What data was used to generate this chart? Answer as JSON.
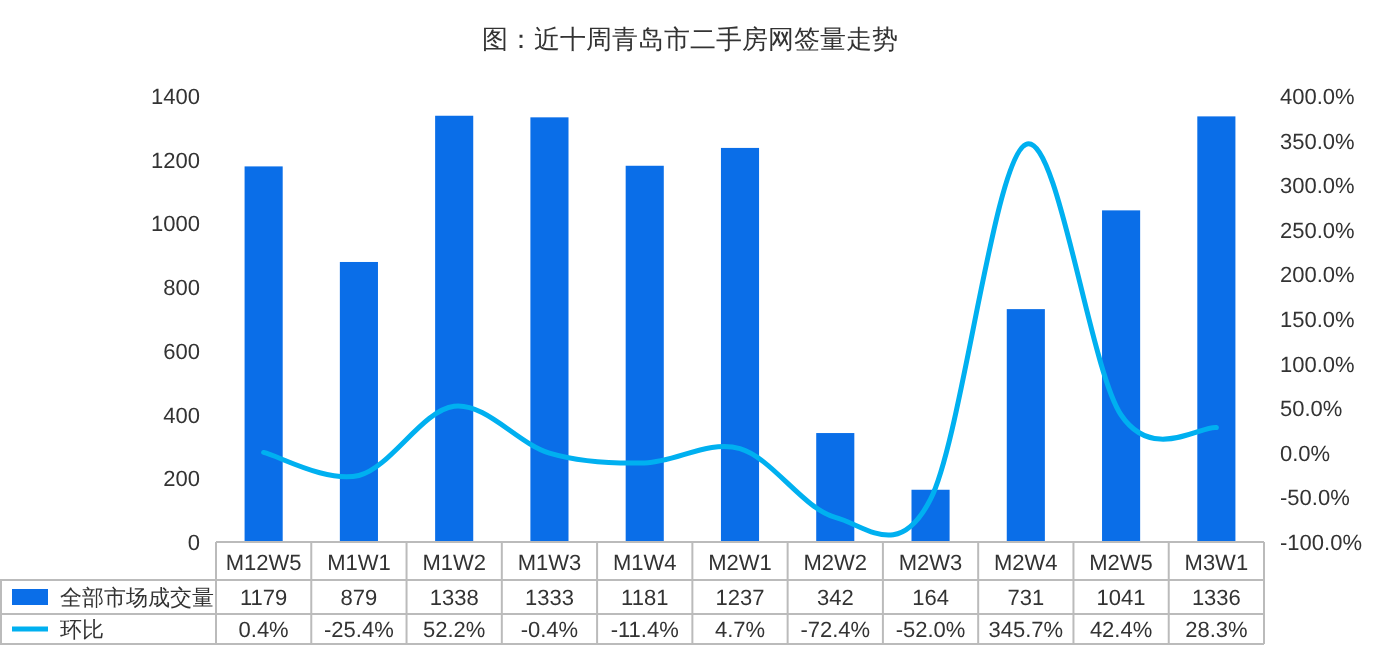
{
  "chart_data": {
    "type": "bar",
    "title": "图：近十周青岛市二手房网签量走势",
    "categories": [
      "M12W5",
      "M1W1",
      "M1W2",
      "M1W3",
      "M1W4",
      "M2W1",
      "M2W2",
      "M2W3",
      "M2W4",
      "M2W5",
      "M3W1"
    ],
    "series": [
      {
        "name": "全部市场成交量",
        "color": "#0a6ee8",
        "values": [
          1179,
          879,
          1338,
          1333,
          1181,
          1237,
          342,
          164,
          731,
          1041,
          1336
        ],
        "value_labels": [
          "1179",
          "879",
          "1338",
          "1333",
          "1181",
          "1237",
          "342",
          "164",
          "731",
          "1041",
          "1336"
        ]
      },
      {
        "name": "环比",
        "type": "line",
        "axis": "y2",
        "color": "#00b0f0",
        "values": [
          0.4,
          -25.4,
          52.2,
          -0.4,
          -11.4,
          4.7,
          -72.4,
          -52.0,
          345.7,
          42.4,
          28.3
        ],
        "value_labels": [
          "0.4%",
          "-25.4%",
          "52.2%",
          "-0.4%",
          "-11.4%",
          "4.7%",
          "-72.4%",
          "-52.0%",
          "345.7%",
          "42.4%",
          "28.3%"
        ]
      }
    ],
    "ylim": [
      0,
      1400
    ],
    "yticks": [
      0,
      200,
      400,
      600,
      800,
      1000,
      1200,
      1400
    ],
    "y2lim": [
      -100,
      400
    ],
    "y2ticks": [
      {
        "value": -100,
        "label": "-100.0%"
      },
      {
        "value": -50,
        "label": "-50.0%"
      },
      {
        "value": 0,
        "label": "0.0%"
      },
      {
        "value": 50,
        "label": "50.0%"
      },
      {
        "value": 100,
        "label": "100.0%"
      },
      {
        "value": 150,
        "label": "150.0%"
      },
      {
        "value": 200,
        "label": "200.0%"
      },
      {
        "value": 250,
        "label": "250.0%"
      },
      {
        "value": 300,
        "label": "300.0%"
      },
      {
        "value": 350,
        "label": "350.0%"
      },
      {
        "value": 400,
        "label": "400.0%"
      }
    ],
    "legend": "bottom",
    "grid": false
  }
}
